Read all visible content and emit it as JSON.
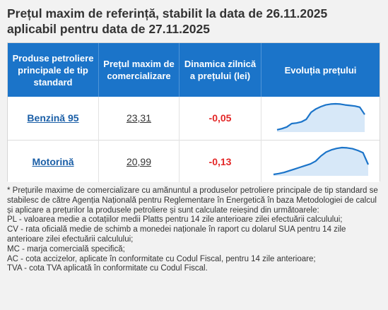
{
  "title_line1": "Prețul maxim de referință, stabilit la data de 26.11.2025",
  "title_line2": "aplicabil pentru data de 27.11.2025",
  "table": {
    "headers": [
      "Produse petroliere principale de tip standard",
      "Prețul maxim de comercializare",
      "Dinamica zilnică a prețului (lei)",
      "Evoluția prețului"
    ],
    "rows": [
      {
        "product": "Benzină 95",
        "price": "23,31",
        "delta": "-0,05",
        "trend_color": "#1b74c9",
        "trend": [
          0.08,
          0.12,
          0.18,
          0.3,
          0.32,
          0.36,
          0.45,
          0.7,
          0.82,
          0.9,
          0.96,
          0.99,
          1.0,
          0.99,
          0.96,
          0.94,
          0.92,
          0.88,
          0.62
        ]
      },
      {
        "product": "Motorină",
        "price": "20,99",
        "delta": "-0,13",
        "trend_color": "#1b74c9",
        "trend": [
          0.05,
          0.08,
          0.12,
          0.18,
          0.24,
          0.3,
          0.36,
          0.42,
          0.52,
          0.7,
          0.84,
          0.92,
          0.97,
          1.0,
          0.99,
          0.96,
          0.9,
          0.82,
          0.4
        ]
      }
    ]
  },
  "notes": [
    "* Prețurile maxime de comercializare cu amănuntul a produselor petroliere principale de tip standard se stabilesc de către Agenția Națională pentru Reglementare în Energetică în baza Metodologiei de calcul și aplicare a prețurilor la produsele petroliere și sunt calculate reieșind din următoarele:",
    "PL - valoarea medie a cotațiilor medii Platts pentru 14 zile anterioare zilei efectuării calculului;",
    "CV - rata oficială medie de schimb a monedei naționale în raport cu dolarul SUA pentru 14 zile anterioare zilei efectuării calculului;",
    "MC - marja comercială specifică;",
    "AC - cota accizelor, aplicate în conformitate cu Codul Fiscal, pentru 14 zile anterioare;",
    "TVA - cota TVA aplicată în conformitate cu Codul Fiscal."
  ]
}
